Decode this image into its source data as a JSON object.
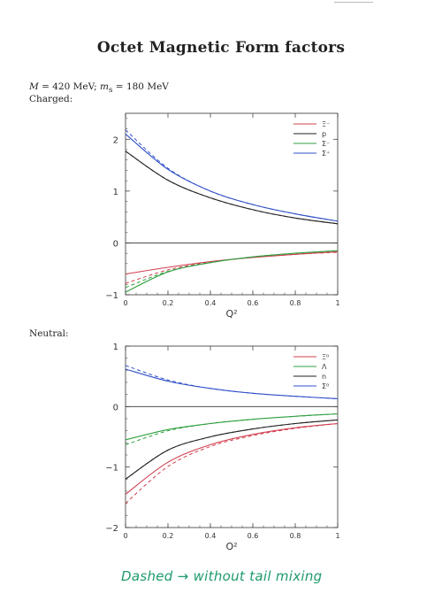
{
  "page": {
    "title": "Octet Magnetic Form factors",
    "params_text": "M = 420 MeV; m_s = 180 MeV",
    "params": {
      "M_symbol": "M",
      "M_value": " = 420 MeV; ",
      "ms_symbol": "m",
      "ms_sub": "s",
      "ms_value": " = 180 MeV"
    },
    "handwritten_note": "Dashed → without tail mixing"
  },
  "chart_data": [
    {
      "type": "line",
      "panel_label": "Charged:",
      "xlabel": "Q²",
      "xlim": [
        0,
        1
      ],
      "ylim": [
        -1,
        2.5
      ],
      "xticks": [
        0,
        0.2,
        0.4,
        0.6,
        0.8,
        1
      ],
      "xtick_labels": [
        "0",
        "0.2",
        "0.4",
        "0.6",
        "0.8",
        "1"
      ],
      "yticks": [
        -1,
        0,
        1,
        2
      ],
      "ytick_labels": [
        "−1",
        "0",
        "1",
        "2"
      ],
      "zero_line": true,
      "legend": "top-right",
      "series": [
        {
          "name": "Ξ⁻",
          "color": "#d04050",
          "x": [
            0,
            0.2,
            0.4,
            0.6,
            0.8,
            1
          ],
          "solid": [
            -0.6,
            -0.47,
            -0.36,
            -0.28,
            -0.22,
            -0.17
          ],
          "dashed": [
            -0.78,
            -0.52,
            -0.37,
            -0.28,
            -0.22,
            -0.18
          ]
        },
        {
          "name": "p",
          "color": "#222222",
          "x": [
            0,
            0.2,
            0.4,
            0.6,
            0.8,
            1
          ],
          "solid": [
            1.77,
            1.21,
            0.87,
            0.64,
            0.48,
            0.37
          ],
          "dashed": [
            1.77,
            1.21,
            0.87,
            0.64,
            0.48,
            0.37
          ]
        },
        {
          "name": "Σ⁻",
          "color": "#30a040",
          "x": [
            0,
            0.2,
            0.4,
            0.6,
            0.8,
            1
          ],
          "solid": [
            -0.95,
            -0.56,
            -0.38,
            -0.27,
            -0.2,
            -0.15
          ],
          "dashed": [
            -0.86,
            -0.55,
            -0.38,
            -0.27,
            -0.2,
            -0.15
          ]
        },
        {
          "name": "Σ⁺",
          "color": "#3050c8",
          "x": [
            0,
            0.2,
            0.4,
            0.6,
            0.8,
            1
          ],
          "solid": [
            2.1,
            1.42,
            1.0,
            0.74,
            0.56,
            0.42
          ],
          "dashed": [
            2.18,
            1.44,
            1.0,
            0.74,
            0.56,
            0.42
          ]
        }
      ]
    },
    {
      "type": "line",
      "panel_label": "Neutral:",
      "xlabel": "Q²",
      "xlim": [
        0,
        1
      ],
      "ylim": [
        -2,
        1
      ],
      "xticks": [
        0,
        0.2,
        0.4,
        0.6,
        0.8,
        1
      ],
      "xtick_labels": [
        "0",
        "0.2",
        "0.4",
        "0.6",
        "0.8",
        "1"
      ],
      "yticks": [
        -2,
        -1,
        0,
        1
      ],
      "ytick_labels": [
        "−2",
        "−1",
        "0",
        "1"
      ],
      "zero_line": true,
      "legend": "top-right",
      "series": [
        {
          "name": "Ξ⁰",
          "color": "#d04050",
          "x": [
            0,
            0.2,
            0.4,
            0.6,
            0.8,
            1
          ],
          "solid": [
            -1.45,
            -0.92,
            -0.63,
            -0.46,
            -0.35,
            -0.28
          ],
          "dashed": [
            -1.6,
            -0.99,
            -0.66,
            -0.48,
            -0.36,
            -0.28
          ]
        },
        {
          "name": "Λ",
          "color": "#30a040",
          "x": [
            0,
            0.2,
            0.4,
            0.6,
            0.8,
            1
          ],
          "solid": [
            -0.55,
            -0.38,
            -0.28,
            -0.21,
            -0.16,
            -0.12
          ],
          "dashed": [
            -0.63,
            -0.4,
            -0.28,
            -0.21,
            -0.16,
            -0.12
          ]
        },
        {
          "name": "n",
          "color": "#222222",
          "x": [
            0,
            0.2,
            0.4,
            0.6,
            0.8,
            1
          ],
          "solid": [
            -1.2,
            -0.72,
            -0.5,
            -0.37,
            -0.28,
            -0.22
          ],
          "dashed": [
            -1.2,
            -0.72,
            -0.5,
            -0.37,
            -0.28,
            -0.22
          ]
        },
        {
          "name": "Σ⁰",
          "color": "#3050c8",
          "x": [
            0,
            0.2,
            0.4,
            0.6,
            0.8,
            1
          ],
          "solid": [
            0.62,
            0.42,
            0.3,
            0.22,
            0.17,
            0.13
          ],
          "dashed": [
            0.68,
            0.44,
            0.3,
            0.22,
            0.17,
            0.13
          ]
        }
      ]
    }
  ]
}
